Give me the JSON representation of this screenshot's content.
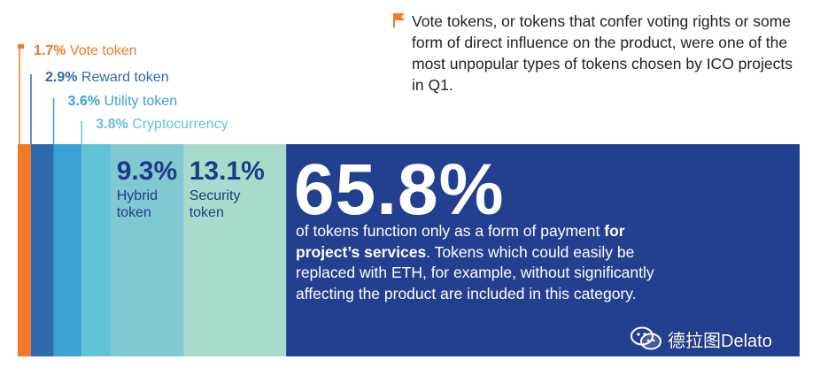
{
  "chart_data": {
    "type": "bar",
    "categories": [
      "Vote token",
      "Reward token",
      "Utility token",
      "Cryptocurrency",
      "Hybrid token",
      "Security token",
      "Payment token"
    ],
    "values": [
      1.7,
      2.9,
      3.6,
      3.8,
      9.3,
      13.1,
      65.8
    ],
    "value_labels": [
      "1.7%",
      "2.9%",
      "3.6%",
      "3.8%",
      "9.3%",
      "13.1%",
      "65.8%"
    ],
    "inside_labels": {
      "hybrid_line1": "Hybrid",
      "hybrid_line2": "token",
      "security_line1": "Security",
      "security_line2": "token"
    },
    "colors": [
      "#f07a2a",
      "#2f6aad",
      "#3ba2d4",
      "#63c3d6",
      "#80c8d2",
      "#a7dccd",
      "#234090"
    ]
  },
  "note": {
    "text": "Vote tokens, or tokens that confer voting rights or some form of direct influence on the product, were one of the most unpopular types of tokens chosen by ICO projects in Q1.",
    "flag_icon": "flag-icon",
    "flag_color": "#f07a2a"
  },
  "main": {
    "big_value": "65.8%",
    "desc_pre": "of tokens function only as a form of payment ",
    "desc_bold": "for project’s services",
    "desc_post": ". Tokens which could easily be replaced with ETH, for example, without significantly affecting the product are included in this category."
  },
  "watermark": {
    "icon": "wechat-icon",
    "text": "德拉图Delato"
  }
}
